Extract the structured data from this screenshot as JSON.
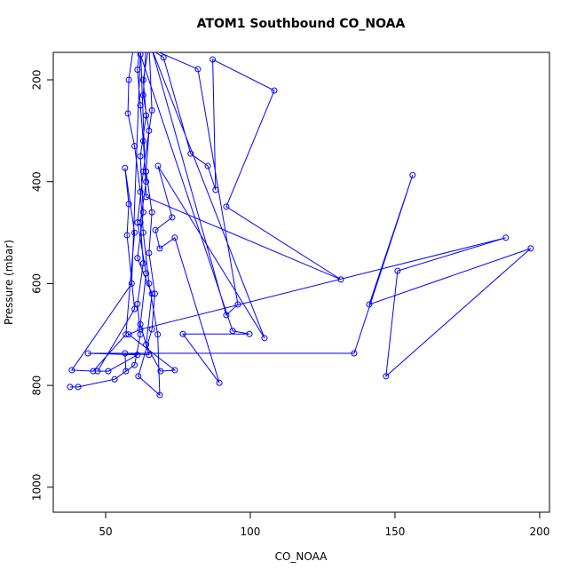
{
  "chart_data": {
    "type": "line",
    "title": "ATOM1 Southbound CO_NOAA",
    "x_label": "CO_NOAA",
    "y_label": "Pressure (mbar)",
    "x": [
      37.7,
      40.5,
      53.1,
      60,
      62,
      61,
      63,
      62,
      64,
      63,
      62,
      61,
      62,
      64,
      63,
      65,
      64,
      66,
      65,
      67,
      66,
      61.3,
      68.7,
      68,
      65,
      63,
      62,
      60,
      57.7,
      58,
      60,
      70,
      79.4,
      85.3,
      88,
      87,
      108.3,
      91.7,
      131.3,
      64,
      62,
      81.9,
      95.7,
      91.7,
      66,
      104.9,
      68.1,
      73.0,
      67.2,
      68.7,
      73.9,
      89.3,
      76.7,
      99.7,
      93.9,
      62,
      59,
      38.3,
      45.7,
      57,
      60,
      56.7,
      58,
      57.4,
      60,
      47.2,
      50.9,
      61,
      43.9,
      135.9,
      156.1,
      141.1,
      196.9,
      146.9,
      150.9,
      188.3,
      62,
      58,
      73.9,
      69,
      64,
      66,
      61,
      63,
      62,
      64,
      63,
      65,
      66,
      63,
      61,
      64,
      62,
      65,
      56.7,
      57
    ],
    "series": [
      {
        "name": "CO_NOAA",
        "color": "#0000ff",
        "values": [
          803,
          803,
          788,
          760,
          700,
          640,
          560,
          480,
          400,
          320,
          250,
          180,
          120,
          130,
          230,
          300,
          380,
          460,
          540,
          620,
          690,
          782,
          819,
          700,
          600,
          500,
          420,
          330,
          266,
          200,
          120,
          156,
          345,
          369,
          416,
          160,
          221,
          449,
          592,
          430,
          130,
          179,
          641,
          662,
          140,
          707,
          369,
          470,
          495,
          531,
          510,
          795,
          699,
          699,
          693,
          150,
          600,
          770,
          772,
          700,
          500,
          373,
          444,
          505,
          650,
          772,
          772,
          740,
          737,
          737,
          387,
          641,
          531,
          782,
          575,
          510,
          690,
          700,
          770,
          772,
          720,
          620,
          550,
          460,
          350,
          270,
          200,
          130,
          260,
          380,
          480,
          580,
          680,
          740,
          737,
          772
        ]
      }
    ],
    "xlim": [
      31.9,
      203.4
    ],
    "ylim": [
      1049,
      146
    ],
    "xticks": [
      50,
      100,
      150,
      200
    ],
    "yticks": [
      200,
      400,
      600,
      800,
      1000
    ]
  }
}
